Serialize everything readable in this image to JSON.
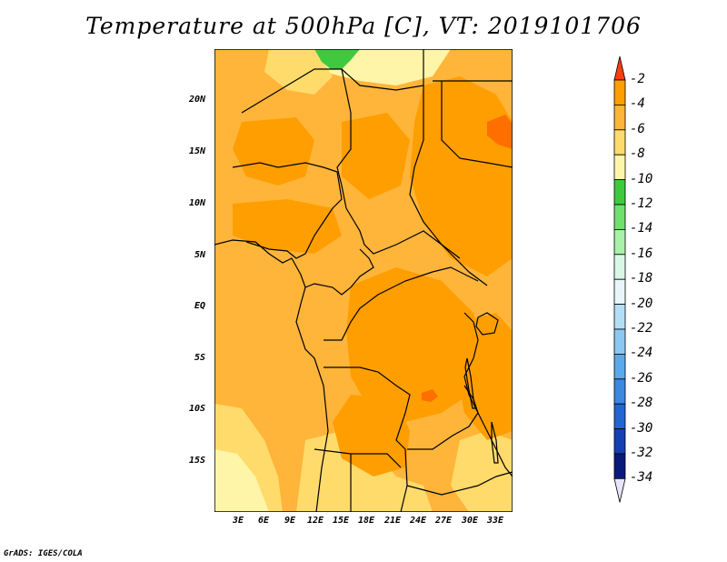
{
  "title": "Temperature at 500hPa [C], VT: 2019101706",
  "credit": "GrADS: IGES/COLA",
  "map": {
    "lat_labels": [
      "20N",
      "15N",
      "10N",
      "5N",
      "EQ",
      "5S",
      "10S",
      "15S"
    ],
    "lon_labels": [
      "3E",
      "6E",
      "9E",
      "12E",
      "15E",
      "18E",
      "21E",
      "24E",
      "27E",
      "30E",
      "33E"
    ],
    "colors": {
      "c_m2_m4": "#ff6f00",
      "c_m4_m6": "#ff9e00",
      "c_m6_m8": "#ffb53a",
      "c_m8_m10": "#ffdb6b",
      "c_m10_m12": "#fff5a8",
      "c_m12_m14": "#3fc93f"
    }
  },
  "colorbar": {
    "labels": [
      "-2",
      "-4",
      "-6",
      "-8",
      "-10",
      "-12",
      "-14",
      "-16",
      "-18",
      "-20",
      "-22",
      "-24",
      "-26",
      "-28",
      "-30",
      "-32",
      "-34"
    ],
    "colors": [
      "#ff6a00",
      "#ff9e00",
      "#ffb53a",
      "#ffdb6b",
      "#fff5a8",
      "#3fc93f",
      "#6fe06f",
      "#a9f0a9",
      "#d9f7e6",
      "#e8f6fb",
      "#b4def7",
      "#8cc9f2",
      "#5aa9ec",
      "#3a88e0",
      "#2165d2",
      "#1540b4",
      "#0a1a7a"
    ],
    "top_arrow_color": "#ff3d0f",
    "bottom_arrow_color": "#e9e4fa"
  }
}
